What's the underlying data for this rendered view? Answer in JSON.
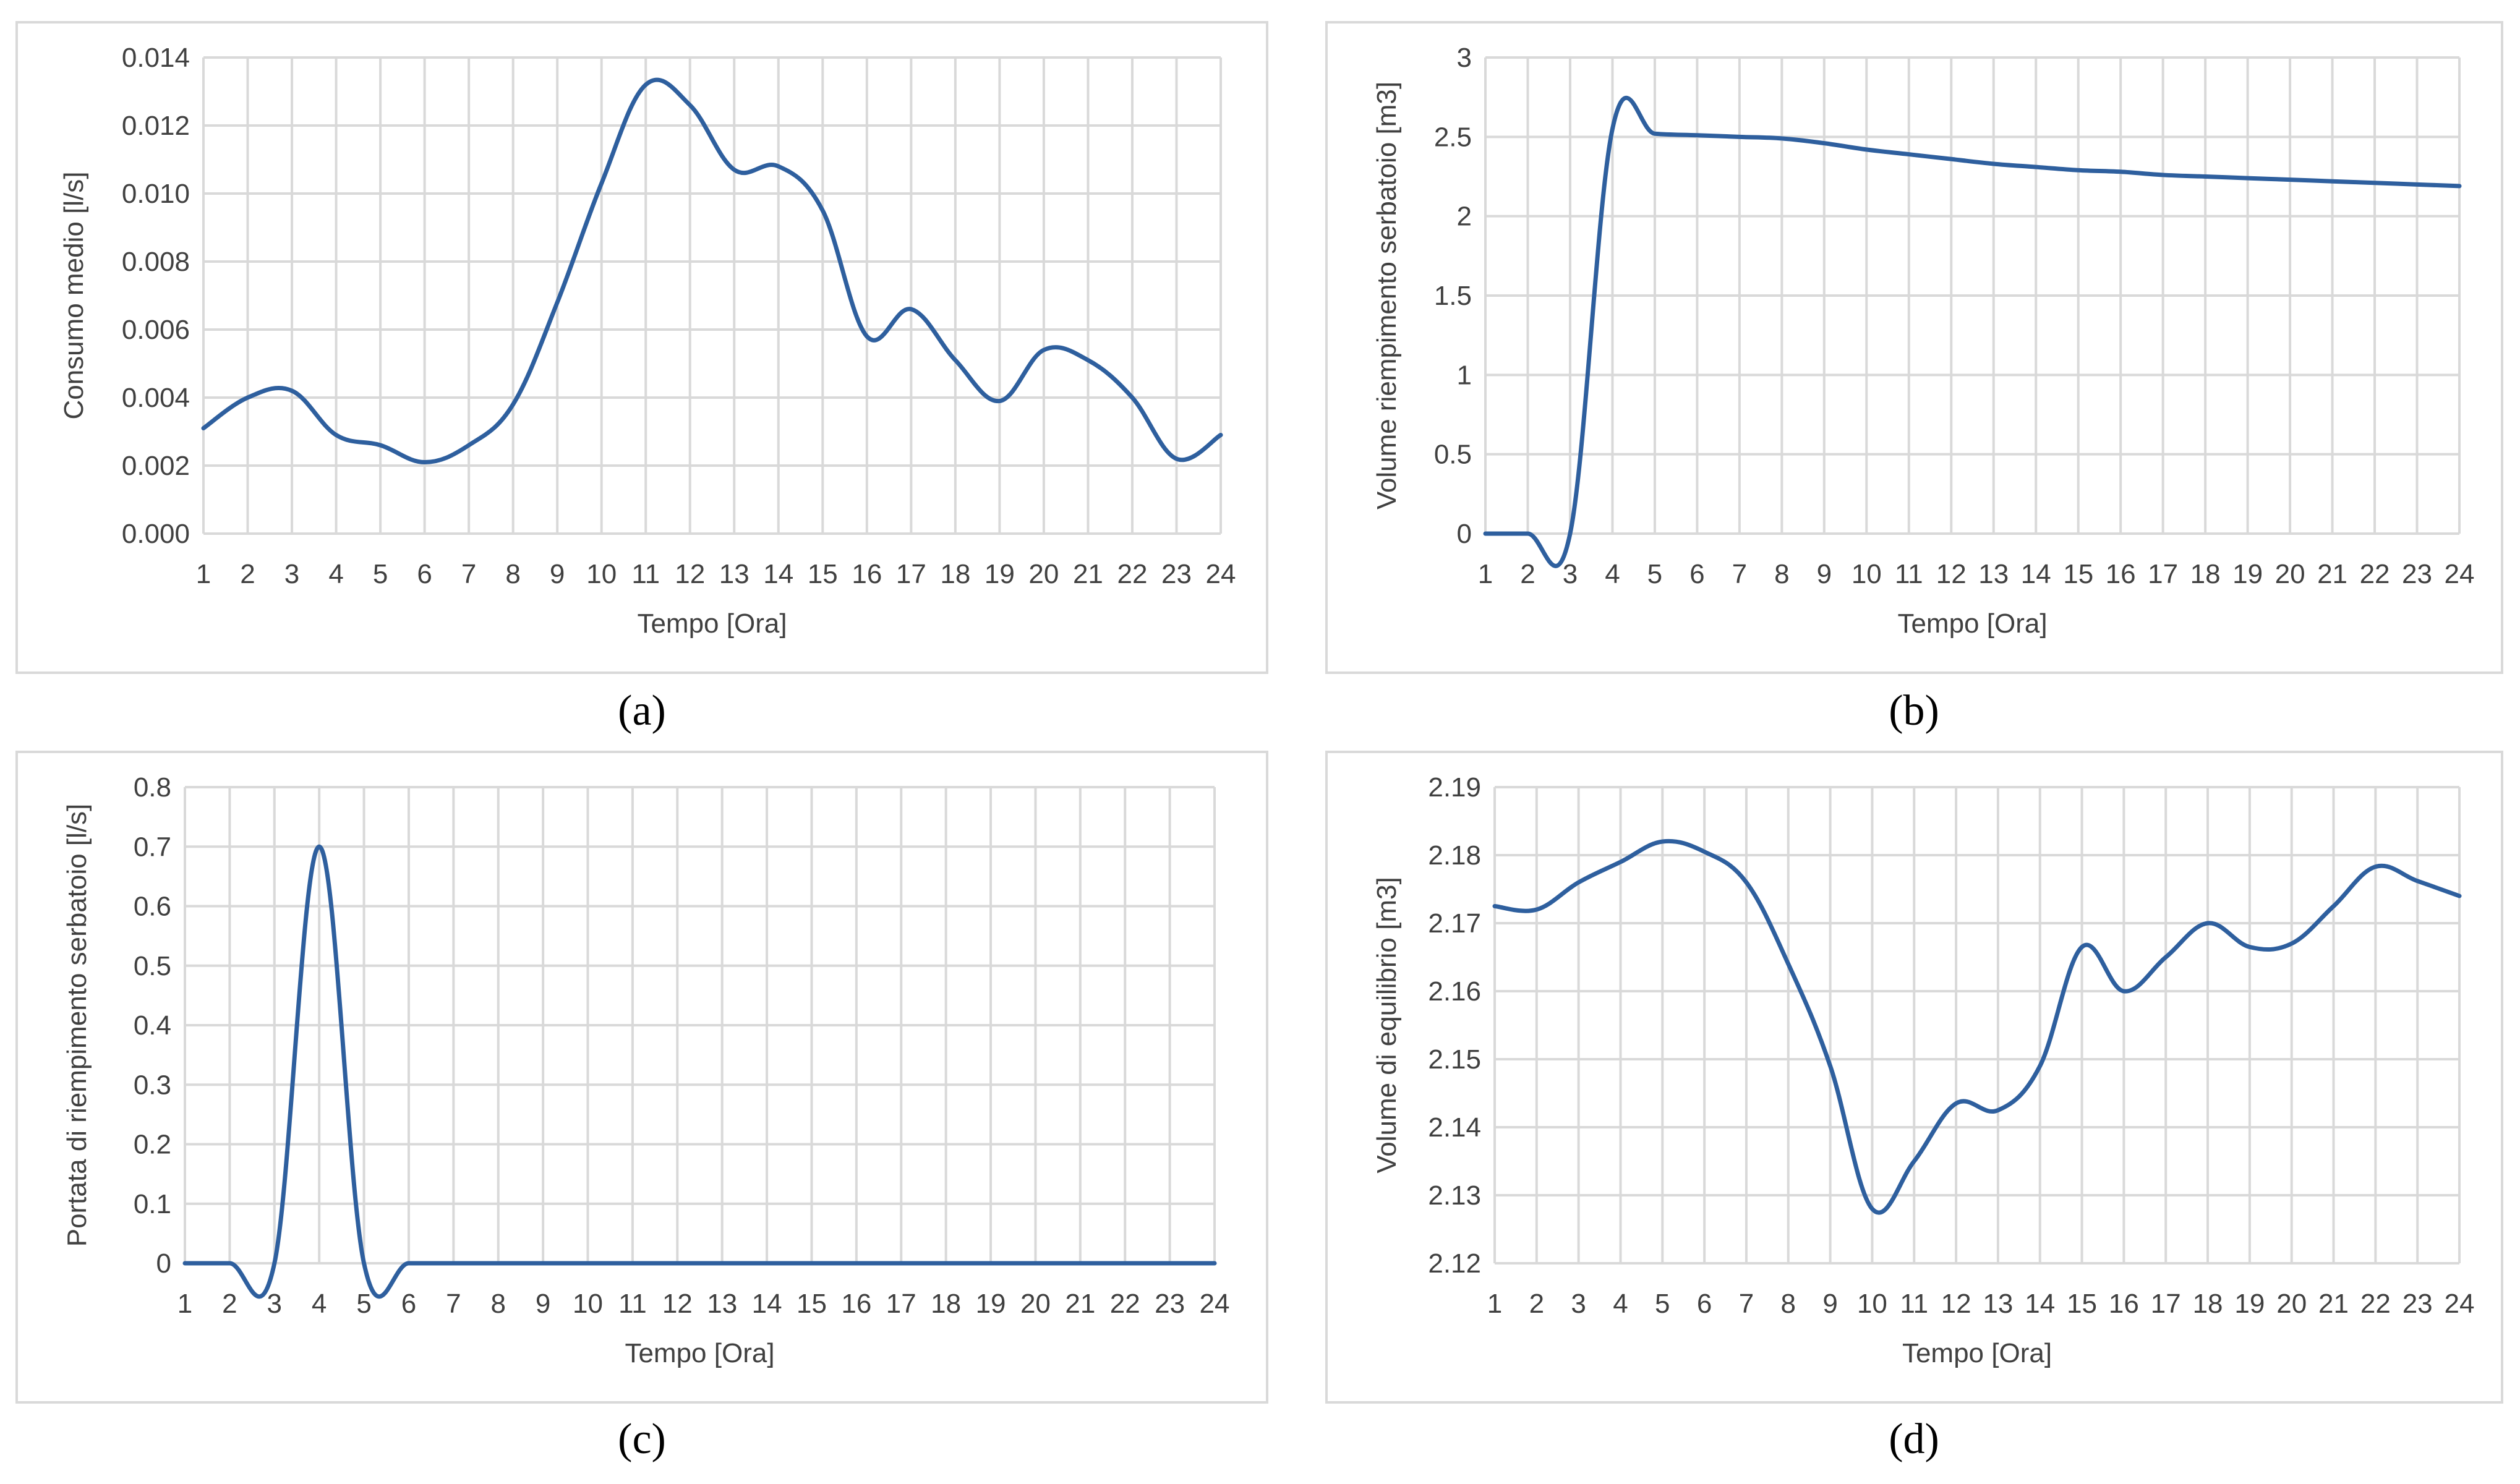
{
  "charts": [
    {
      "id": "a",
      "caption": "(a)",
      "chart_data": {
        "type": "line",
        "xlabel": "Tempo [Ora]",
        "ylabel": "Consumo medio [l/s]",
        "x": [
          1,
          2,
          3,
          4,
          5,
          6,
          7,
          8,
          9,
          10,
          11,
          12,
          13,
          14,
          15,
          16,
          17,
          18,
          19,
          20,
          21,
          22,
          23,
          24
        ],
        "categories": [
          "1",
          "2",
          "3",
          "4",
          "5",
          "6",
          "7",
          "8",
          "9",
          "10",
          "11",
          "12",
          "13",
          "14",
          "15",
          "16",
          "17",
          "18",
          "19",
          "20",
          "21",
          "22",
          "23",
          "24"
        ],
        "ylim": [
          0,
          0.014
        ],
        "yticks": [
          "0.000",
          "0.002",
          "0.004",
          "0.006",
          "0.008",
          "0.010",
          "0.012",
          "0.014"
        ],
        "grid": true,
        "series": [
          {
            "values": [
              0.0031,
              0.004,
              0.0042,
              0.0029,
              0.0026,
              0.0021,
              0.0026,
              0.0038,
              0.0068,
              0.0103,
              0.0132,
              0.0126,
              0.0107,
              0.0108,
              0.0095,
              0.0058,
              0.0066,
              0.0051,
              0.0039,
              0.0054,
              0.0051,
              0.004,
              0.0022,
              0.0029
            ]
          }
        ]
      }
    },
    {
      "id": "b",
      "caption": "(b)",
      "chart_data": {
        "type": "line",
        "xlabel": "Tempo [Ora]",
        "ylabel": "Volume riempimento serbatoio [m3]",
        "x": [
          1,
          2,
          3,
          4,
          5,
          6,
          7,
          8,
          9,
          10,
          11,
          12,
          13,
          14,
          15,
          16,
          17,
          18,
          19,
          20,
          21,
          22,
          23,
          24
        ],
        "categories": [
          "1",
          "2",
          "3",
          "4",
          "5",
          "6",
          "7",
          "8",
          "9",
          "10",
          "11",
          "12",
          "13",
          "14",
          "15",
          "16",
          "17",
          "18",
          "19",
          "20",
          "21",
          "22",
          "23",
          "24"
        ],
        "ylim": [
          0,
          3
        ],
        "yticks": [
          "0",
          "0.5",
          "1",
          "1.5",
          "2",
          "2.5",
          "3"
        ],
        "grid": true,
        "series": [
          {
            "values": [
              0,
              0,
              0,
              2.55,
              2.52,
              2.51,
              2.5,
              2.49,
              2.46,
              2.42,
              2.39,
              2.36,
              2.33,
              2.31,
              2.29,
              2.28,
              2.26,
              2.25,
              2.24,
              2.23,
              2.22,
              2.21,
              2.2,
              2.19
            ]
          }
        ]
      }
    },
    {
      "id": "c",
      "caption": "(c)",
      "chart_data": {
        "type": "line",
        "xlabel": "Tempo [Ora]",
        "ylabel": "Portata di riempimento serbatoio [l/s]",
        "x": [
          1,
          2,
          3,
          4,
          5,
          6,
          7,
          8,
          9,
          10,
          11,
          12,
          13,
          14,
          15,
          16,
          17,
          18,
          19,
          20,
          21,
          22,
          23,
          24
        ],
        "categories": [
          "1",
          "2",
          "3",
          "4",
          "5",
          "6",
          "7",
          "8",
          "9",
          "10",
          "11",
          "12",
          "13",
          "14",
          "15",
          "16",
          "17",
          "18",
          "19",
          "20",
          "21",
          "22",
          "23",
          "24"
        ],
        "ylim": [
          0,
          0.8
        ],
        "yticks": [
          "0",
          "0.1",
          "0.2",
          "0.3",
          "0.4",
          "0.5",
          "0.6",
          "0.7",
          "0.8"
        ],
        "grid": true,
        "series": [
          {
            "values": [
              0,
              0,
              0,
              0.7,
              0,
              0,
              0,
              0,
              0,
              0,
              0,
              0,
              0,
              0,
              0,
              0,
              0,
              0,
              0,
              0,
              0,
              0,
              0,
              0
            ]
          }
        ]
      }
    },
    {
      "id": "d",
      "caption": "(d)",
      "chart_data": {
        "type": "line",
        "xlabel": "Tempo [Ora]",
        "ylabel": "Volume di equilibrio [m3]",
        "x": [
          1,
          2,
          3,
          4,
          5,
          6,
          7,
          8,
          9,
          10,
          11,
          12,
          13,
          14,
          15,
          16,
          17,
          18,
          19,
          20,
          21,
          22,
          23,
          24
        ],
        "categories": [
          "1",
          "2",
          "3",
          "4",
          "5",
          "6",
          "7",
          "8",
          "9",
          "10",
          "11",
          "12",
          "13",
          "14",
          "15",
          "16",
          "17",
          "18",
          "19",
          "20",
          "21",
          "22",
          "23",
          "24"
        ],
        "ylim": [
          2.12,
          2.19
        ],
        "yticks": [
          "2.12",
          "2.13",
          "2.14",
          "2.15",
          "2.16",
          "2.17",
          "2.18",
          "2.19"
        ],
        "grid": true,
        "series": [
          {
            "values": [
              2.1725,
              2.172,
              2.176,
              2.179,
              2.182,
              2.1805,
              2.176,
              2.164,
              2.149,
              2.128,
              2.135,
              2.1435,
              2.1425,
              2.149,
              2.1665,
              2.16,
              2.165,
              2.17,
              2.1665,
              2.167,
              2.1725,
              2.1783,
              2.1762,
              2.174
            ]
          }
        ]
      }
    }
  ],
  "colors": {
    "line": "#2e5f9e",
    "grid": "#d9d9d9",
    "text": "#404040",
    "border": "#d9d9d9"
  }
}
